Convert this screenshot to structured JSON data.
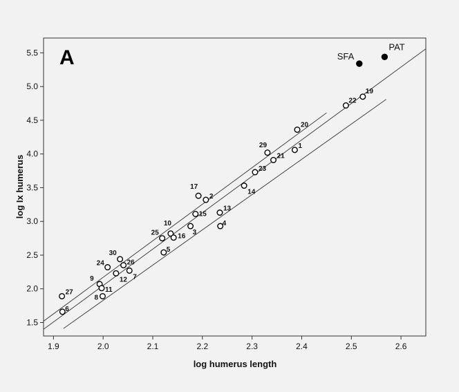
{
  "chart_data": {
    "type": "scatter",
    "panel_label": "A",
    "xlabel": "log humerus length",
    "ylabel": "log Ix humerus",
    "xlim": [
      1.88,
      2.65
    ],
    "ylim": [
      1.3,
      5.72
    ],
    "x_ticks": [
      "1.9",
      "2.0",
      "2.1",
      "2.2",
      "2.3",
      "2.4",
      "2.5",
      "2.6"
    ],
    "y_ticks": [
      "1.5",
      "2.0",
      "2.5",
      "3.0",
      "3.5",
      "4.0",
      "4.5",
      "5.0",
      "5.5"
    ],
    "grid": false,
    "points": [
      {
        "label": "1",
        "x": 2.386,
        "y": 4.06
      },
      {
        "label": "2",
        "x": 2.207,
        "y": 3.32
      },
      {
        "label": "3",
        "x": 2.176,
        "y": 2.93
      },
      {
        "label": "4",
        "x": 2.236,
        "y": 2.93
      },
      {
        "label": "5",
        "x": 2.122,
        "y": 2.54
      },
      {
        "label": "6",
        "x": 1.918,
        "y": 1.66
      },
      {
        "label": "7",
        "x": 2.053,
        "y": 2.27
      },
      {
        "label": "8",
        "x": 1.999,
        "y": 1.89
      },
      {
        "label": "9",
        "x": 1.993,
        "y": 2.07
      },
      {
        "label": "10",
        "x": 2.136,
        "y": 2.82
      },
      {
        "label": "11",
        "x": 1.997,
        "y": 2.01
      },
      {
        "label": "12",
        "x": 2.026,
        "y": 2.23
      },
      {
        "label": "13",
        "x": 2.235,
        "y": 3.13
      },
      {
        "label": "14",
        "x": 2.284,
        "y": 3.53
      },
      {
        "label": "15",
        "x": 2.186,
        "y": 3.11
      },
      {
        "label": "16",
        "x": 2.142,
        "y": 2.76
      },
      {
        "label": "17",
        "x": 2.192,
        "y": 3.38
      },
      {
        "label": "19",
        "x": 2.523,
        "y": 4.85
      },
      {
        "label": "20",
        "x": 2.391,
        "y": 4.36
      },
      {
        "label": "21",
        "x": 2.343,
        "y": 3.91
      },
      {
        "label": "22",
        "x": 2.489,
        "y": 4.72
      },
      {
        "label": "23",
        "x": 2.306,
        "y": 3.73
      },
      {
        "label": "24",
        "x": 2.009,
        "y": 2.32
      },
      {
        "label": "25",
        "x": 2.119,
        "y": 2.75
      },
      {
        "label": "26",
        "x": 2.041,
        "y": 2.35
      },
      {
        "label": "27",
        "x": 1.917,
        "y": 1.89
      },
      {
        "label": "29",
        "x": 2.331,
        "y": 4.02
      },
      {
        "label": "30",
        "x": 2.034,
        "y": 2.44
      }
    ],
    "highlighted_points": [
      {
        "label": "SFA",
        "x": 2.516,
        "y": 5.34
      },
      {
        "label": "PAT",
        "x": 2.567,
        "y": 5.44
      }
    ],
    "reference_lines": [
      {
        "from": [
          1.88,
          1.4
        ],
        "to": [
          2.65,
          5.56
        ]
      },
      {
        "from": [
          1.88,
          1.52
        ],
        "to": [
          2.45,
          4.61
        ]
      },
      {
        "from": [
          1.92,
          1.41
        ],
        "to": [
          2.57,
          4.81
        ]
      }
    ]
  }
}
